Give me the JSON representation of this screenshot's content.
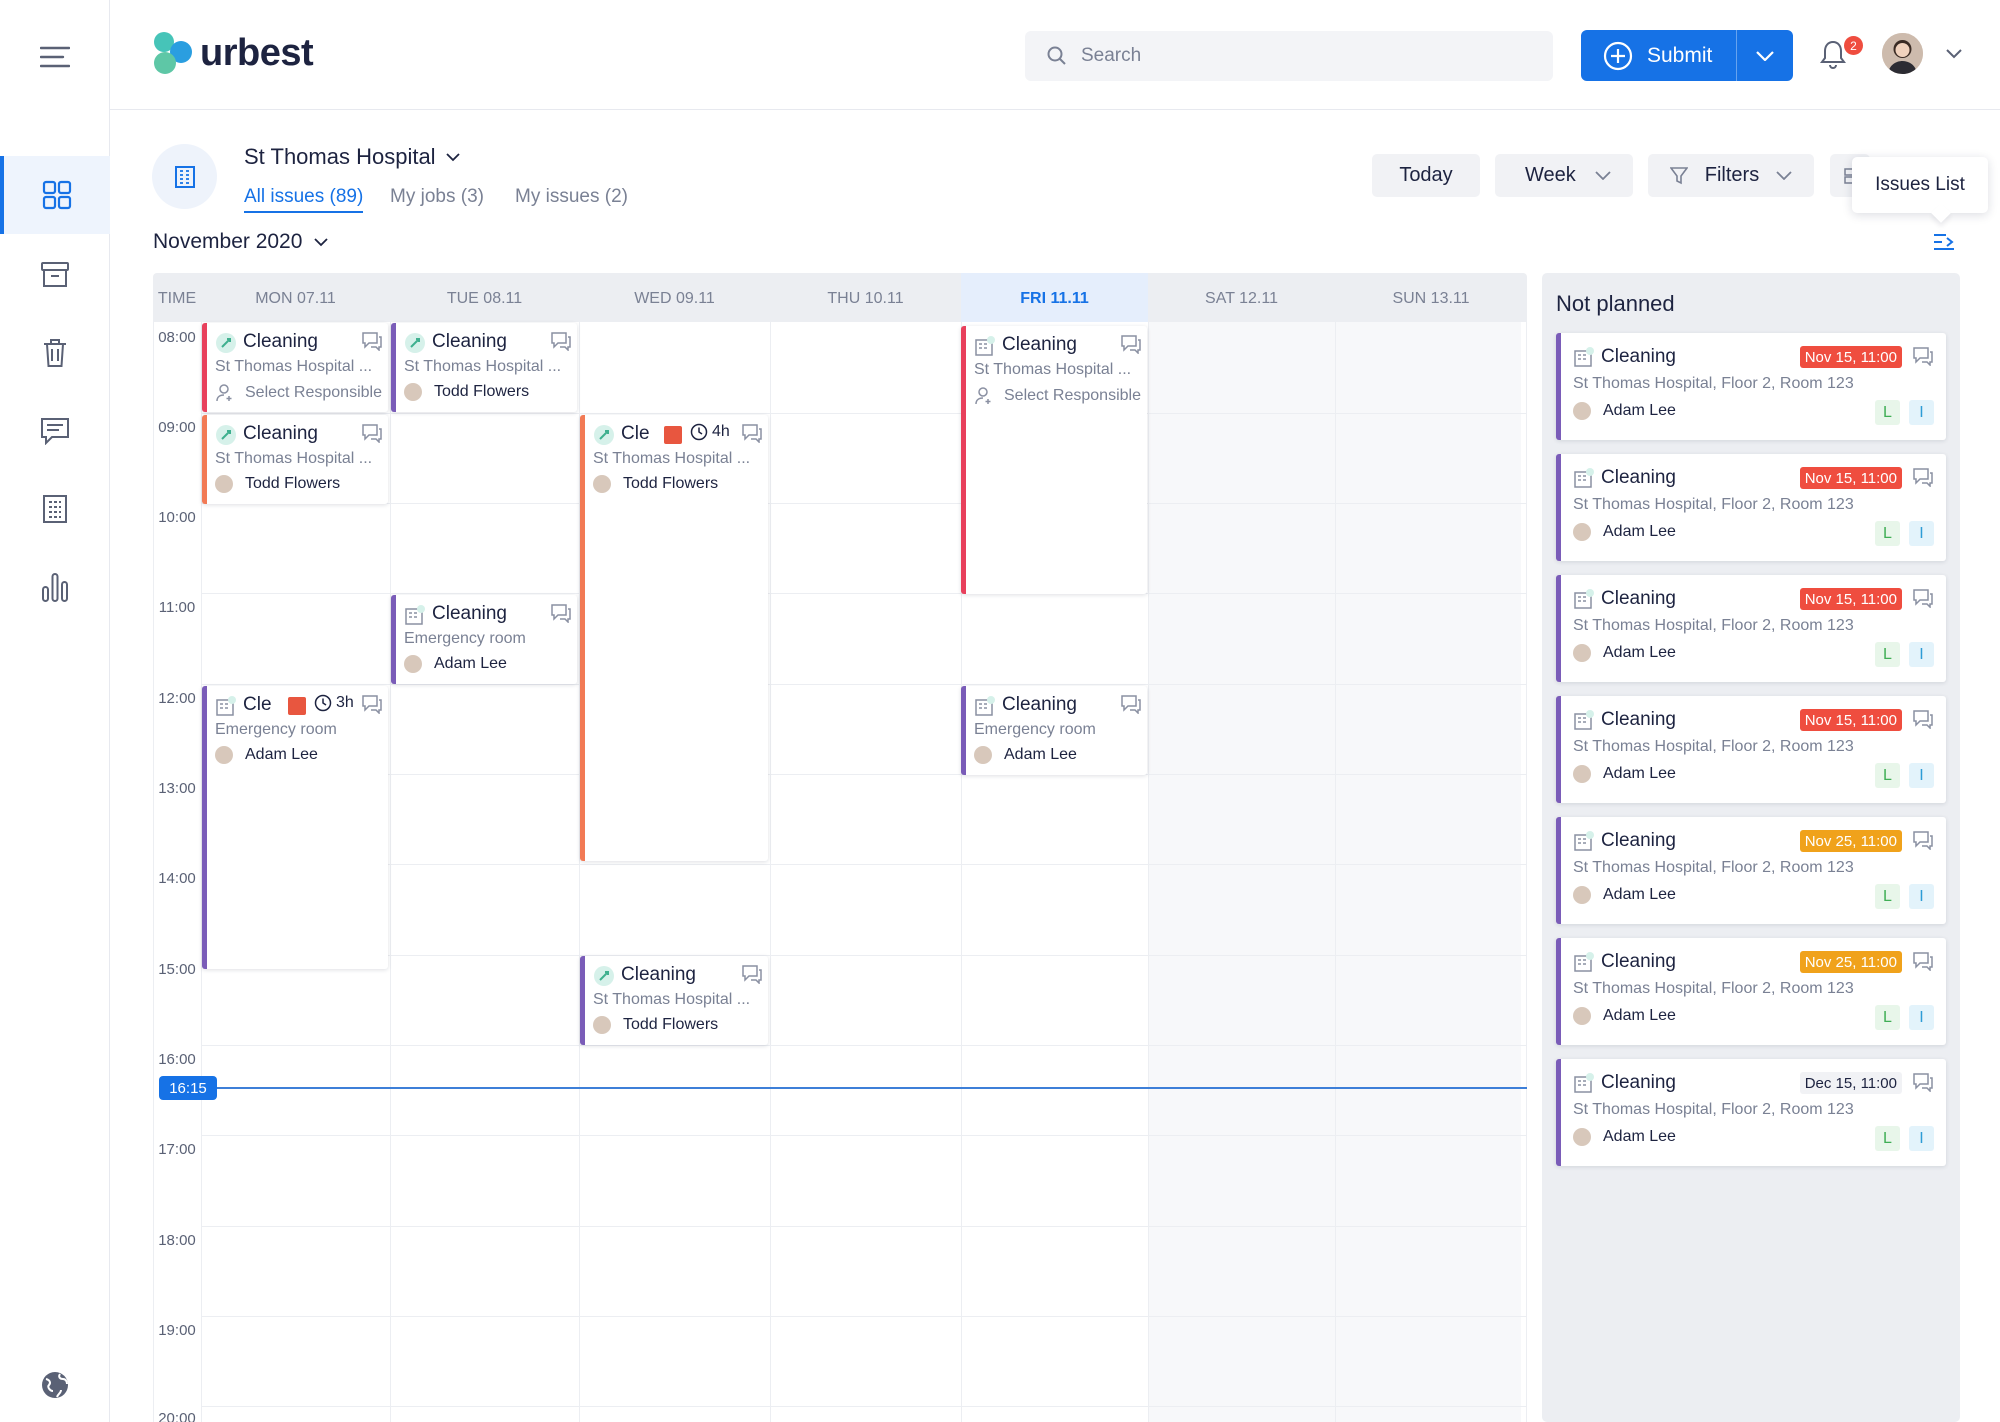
{
  "header": {
    "brand": "urbest",
    "search_placeholder": "Search",
    "submit_label": "Submit",
    "notifications_count": "2"
  },
  "page": {
    "site_name": "St Thomas Hospital",
    "tabs": [
      "All issues (89)",
      "My jobs (3)",
      "My issues (2)"
    ],
    "month": "November 2020",
    "today_label": "Today",
    "view_label": "Week",
    "filters_label": "Filters",
    "tooltip": "Issues List"
  },
  "calendar": {
    "time_header": "TIME",
    "days": [
      "MON 07.11",
      "TUE 08.11",
      "WED 09.11",
      "THU 10.11",
      "FRI 11.11",
      "SAT 12.11",
      "SUN 13.11"
    ],
    "times": [
      "08:00",
      "09:00",
      "10:00",
      "11:00",
      "12:00",
      "13:00",
      "14:00",
      "15:00",
      "16:00",
      "17:00",
      "18:00",
      "19:00",
      "20:00"
    ],
    "now": "16:15",
    "events": [
      {
        "title": "Cleaning",
        "location": "St Thomas Hospital ...",
        "person": "Select Responsible"
      },
      {
        "title": "Cleaning",
        "location": "St Thomas Hospital ...",
        "person": "Todd Flowers"
      },
      {
        "title": "Cleaning",
        "location": "St Thomas Hospital ...",
        "person": "Todd Flowers"
      },
      {
        "title": "Cle",
        "duration": "4h",
        "location": "St Thomas Hospital ...",
        "person": "Todd Flowers"
      },
      {
        "title": "Cleaning",
        "location": "Emergency room",
        "person": "Adam Lee"
      },
      {
        "title": "Cle",
        "duration": "3h",
        "location": "Emergency room",
        "person": "Adam Lee"
      },
      {
        "title": "Cleaning",
        "location": "St Thomas Hospital ...",
        "person": "Select Responsible"
      },
      {
        "title": "Cleaning",
        "location": "Emergency room",
        "person": "Adam Lee"
      },
      {
        "title": "Cleaning",
        "location": "St Thomas Hospital ...",
        "person": "Todd Flowers"
      }
    ]
  },
  "not_planned": {
    "title": "Not planned",
    "items": [
      {
        "title": "Cleaning",
        "date": "Nov 15, 11:00",
        "status": "red",
        "location": "St Thomas Hospital, Floor 2, Room 123",
        "person": "Adam Lee",
        "tag1": "L",
        "tag2": "I"
      },
      {
        "title": "Cleaning",
        "date": "Nov 15, 11:00",
        "status": "red",
        "location": "St Thomas Hospital, Floor 2, Room 123",
        "person": "Adam Lee",
        "tag1": "L",
        "tag2": "I"
      },
      {
        "title": "Cleaning",
        "date": "Nov 15, 11:00",
        "status": "red",
        "location": "St Thomas Hospital, Floor 2, Room 123",
        "person": "Adam Lee",
        "tag1": "L",
        "tag2": "I"
      },
      {
        "title": "Cleaning",
        "date": "Nov 15, 11:00",
        "status": "red",
        "location": "St Thomas Hospital, Floor 2, Room 123",
        "person": "Adam Lee",
        "tag1": "L",
        "tag2": "I"
      },
      {
        "title": "Cleaning",
        "date": "Nov 25, 11:00",
        "status": "orange",
        "location": "St Thomas Hospital, Floor 2, Room 123",
        "person": "Adam Lee",
        "tag1": "L",
        "tag2": "I"
      },
      {
        "title": "Cleaning",
        "date": "Nov 25, 11:00",
        "status": "orange",
        "location": "St Thomas Hospital, Floor 2, Room 123",
        "person": "Adam Lee",
        "tag1": "L",
        "tag2": "I"
      },
      {
        "title": "Cleaning",
        "date": "Dec 15, 11:00",
        "status": "plain",
        "location": "St Thomas Hospital, Floor 2, Room 123",
        "person": "Adam Lee",
        "tag1": "L",
        "tag2": "I"
      }
    ]
  },
  "colors": {
    "accent": "#1672e6",
    "urgent": "#ef4d3f",
    "warning": "#f0a21b",
    "purple_bar": "#7a5cb8",
    "red_bar": "#e8405c",
    "orange_bar": "#f27a55"
  },
  "icons": [
    "menu-icon",
    "dashboard-icon",
    "archive-icon",
    "trash-icon",
    "message-icon",
    "building-icon",
    "chart-icon",
    "globe-icon",
    "search-icon",
    "plus-circle-icon",
    "chevron-down-icon",
    "bell-icon",
    "filter-icon",
    "list-toggle-icon",
    "chat-icon",
    "person-icon",
    "clock-icon"
  ]
}
